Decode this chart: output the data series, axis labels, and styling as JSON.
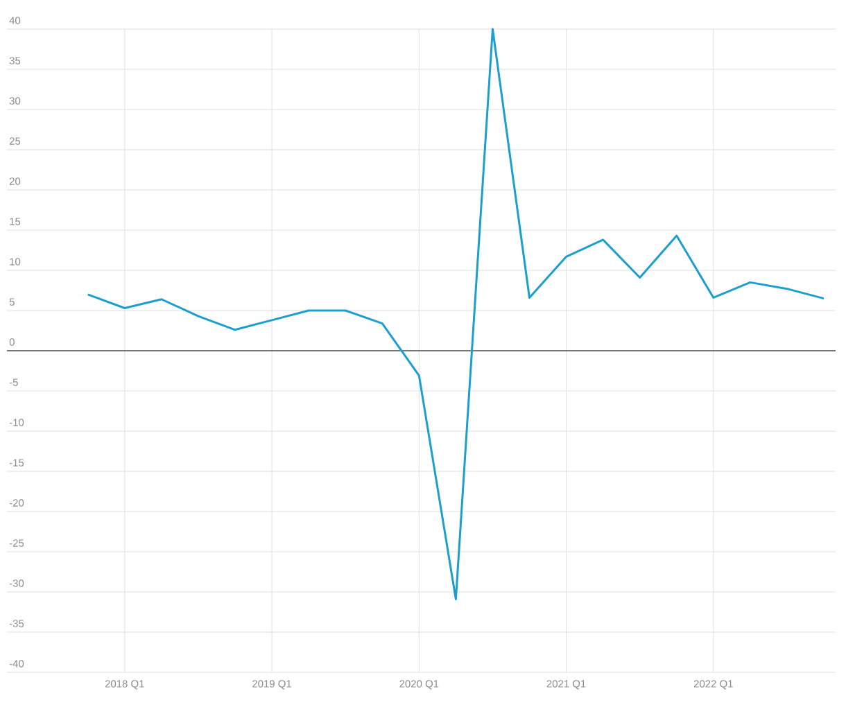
{
  "chart_data": {
    "type": "line",
    "categories": [
      null,
      "2018 Q1",
      null,
      null,
      null,
      "2019 Q1",
      null,
      null,
      null,
      "2020 Q1",
      null,
      null,
      null,
      "2021 Q1",
      null,
      null,
      null,
      "2022 Q1",
      null,
      null,
      null
    ],
    "values": [
      7.0,
      5.3,
      6.4,
      4.3,
      2.6,
      3.8,
      5.0,
      5.0,
      3.4,
      -3.1,
      -30.9,
      40.0,
      6.6,
      11.7,
      13.8,
      9.1,
      14.3,
      6.6,
      8.5,
      7.7,
      6.5
    ],
    "color": "#1a9fce",
    "ylim": [
      -40,
      40
    ],
    "yticks": [
      -40,
      -35,
      -30,
      -25,
      -20,
      -15,
      -10,
      -5,
      0,
      5,
      10,
      15,
      20,
      25,
      30,
      35,
      40
    ],
    "grid": true,
    "ref_lines": [
      {
        "axis": "y",
        "value": 0,
        "color": "#000000"
      }
    ]
  }
}
